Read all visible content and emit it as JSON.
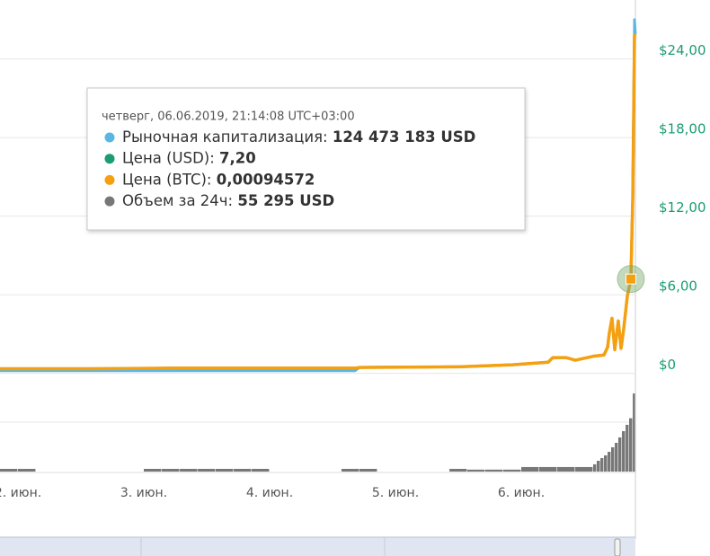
{
  "chart_data": [
    {
      "type": "line",
      "x": [
        1.857,
        2.571,
        3.286,
        4.0,
        4.679,
        4.714,
        5.5,
        5.929,
        6.214,
        6.25,
        6.357,
        6.429,
        6.571,
        6.657,
        6.686,
        6.7,
        6.721,
        6.743,
        6.771,
        6.793,
        6.814,
        6.843,
        6.871,
        6.886,
        6.9,
        6.907
      ],
      "xlim": [
        1.857,
        6.907
      ],
      "xticks": [
        {
          "value": 2,
          "label": "2. июн."
        },
        {
          "value": 3,
          "label": "3. июн."
        },
        {
          "value": 4,
          "label": "4. июн."
        },
        {
          "value": 5,
          "label": "5. июн."
        },
        {
          "value": 6,
          "label": "6. июн."
        }
      ],
      "ylim": [
        -0.3,
        28.5
      ],
      "yticks": [
        {
          "value": 0,
          "label": "$0"
        },
        {
          "value": 6,
          "label": "$6,00"
        },
        {
          "value": 12,
          "label": "$12,00"
        },
        {
          "value": 18,
          "label": "$18,00"
        },
        {
          "value": 24,
          "label": "$24,00"
        }
      ],
      "y2lim": [
        -5187000,
        492780000
      ],
      "y3lim": [
        -3.94e-05,
        0.003744
      ],
      "grid": true,
      "tick_color": "#1b9c75",
      "series": [
        {
          "color": "#5cb6e4",
          "axis": "y2",
          "values": [
            3458000,
            3458000,
            3458000,
            3458000,
            3458000,
            7781000,
            8645000,
            11239000,
            14697000,
            20748000,
            20748000,
            17290000,
            22477000,
            24206000,
            34580000,
            53599000,
            72618000,
            31122000,
            69160000,
            32851000,
            58786000,
            102011000,
            124473183,
            231686000,
            466830000,
            447811000
          ]
        },
        {
          "color": "#1b9c75",
          "values": [
            0.35,
            0.35,
            0.4,
            0.4,
            0.4,
            0.45,
            0.5,
            0.65,
            0.85,
            1.2,
            1.2,
            1.0,
            1.3,
            1.4,
            2.0,
            3.1,
            4.2,
            1.8,
            4.0,
            1.9,
            3.4,
            5.9,
            7.2,
            13.4,
            25.8,
            25.9
          ]
        },
        {
          "color": "#f4a010",
          "axis": "y3",
          "values": [
            4.6e-05,
            4.6e-05,
            5.25e-05,
            5.25e-05,
            5.25e-05,
            5.91e-05,
            6.57e-05,
            8.54e-05,
            0.0001117,
            0.0001576,
            0.0001576,
            0.0001314,
            0.0001708,
            0.0001839,
            0.0002627,
            0.0004072,
            0.0005517,
            0.0002364,
            0.0005254,
            0.0002496,
            0.0004466,
            0.000775,
            0.00094572,
            0.00176,
            0.003389,
            0.003402
          ]
        }
      ],
      "tooltip": {
        "date": "четверг, 06.06.2019, 21:14:08 UTC+03:00",
        "point": 22,
        "rows": [
          {
            "label": "Рыночная капитализация:",
            "value": "124 473 183 USD",
            "color": "#5cb6e4"
          },
          {
            "label": "Цена (USD):",
            "value": "7,20",
            "color": "#1b9c75"
          },
          {
            "label": "Цена (BTC):",
            "value": "0,00094572",
            "color": "#f4a010"
          },
          {
            "label": "Объем за 24ч:",
            "value": "55 295 USD",
            "color": "#777777"
          }
        ]
      }
    },
    {
      "type": "bar",
      "x": [
        1.857,
        2.0,
        2.143,
        2.286,
        2.429,
        2.571,
        2.714,
        2.857,
        3.0,
        3.143,
        3.286,
        3.429,
        3.571,
        3.714,
        3.857,
        4.0,
        4.143,
        4.286,
        4.429,
        4.571,
        4.714,
        4.857,
        5.0,
        5.143,
        5.286,
        5.429,
        5.571,
        5.714,
        5.857,
        6.0,
        6.143,
        6.286,
        6.429,
        6.571,
        6.6,
        6.629,
        6.657,
        6.686,
        6.714,
        6.743,
        6.771,
        6.8,
        6.829,
        6.857,
        6.886
      ],
      "values": [
        2800,
        2800,
        0,
        0,
        0,
        0,
        0,
        0,
        2800,
        2800,
        2800,
        2800,
        2800,
        2800,
        2800,
        0,
        0,
        0,
        0,
        2800,
        2800,
        0,
        0,
        0,
        0,
        2800,
        2000,
        2000,
        2000,
        4700,
        4700,
        4700,
        4700,
        7500,
        11200,
        14000,
        16800,
        20500,
        25200,
        29800,
        35400,
        41900,
        48500,
        55295,
        81000
      ],
      "ylim": [
        0,
        82000
      ],
      "color": "#777777"
    }
  ]
}
